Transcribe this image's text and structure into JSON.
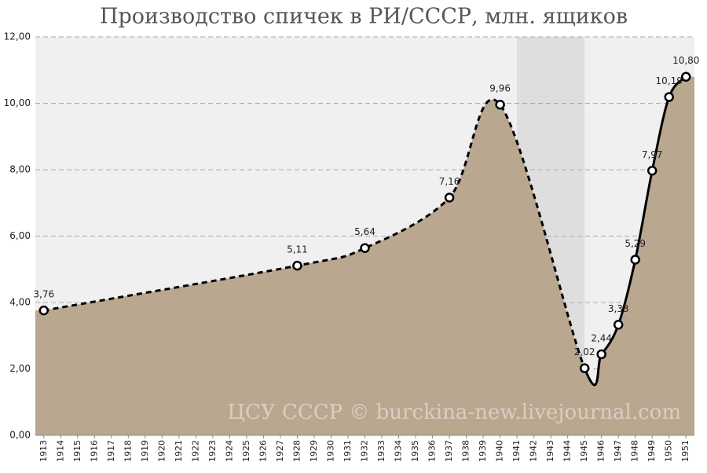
{
  "chart_data": {
    "type": "line",
    "title": "Производство спичек в РИ/СССР, млн. ящиков",
    "watermark": "ЦСУ СССР © burckina-new.livejournal.com",
    "x": [
      1913,
      1928,
      1932,
      1937,
      1940,
      1945,
      1946,
      1947,
      1948,
      1949,
      1950,
      1951
    ],
    "values": [
      3.76,
      5.11,
      5.64,
      7.16,
      9.96,
      2.02,
      2.44,
      3.33,
      5.29,
      7.97,
      10.19,
      10.8
    ],
    "value_labels": [
      "3,76",
      "5,11",
      "5,64",
      "7,16",
      "9,96",
      "2,02",
      "2,44",
      "3,33",
      "5,29",
      "7,97",
      "10,19",
      "10,80"
    ],
    "dashed_until": 1945,
    "highlight": [
      1941,
      1945
    ],
    "color": "#b9a790",
    "xlim": [
      1912.5,
      1951.5
    ],
    "xticks": [
      1913,
      1914,
      1915,
      1916,
      1917,
      1918,
      1919,
      1920,
      1921,
      1922,
      1923,
      1924,
      1925,
      1926,
      1927,
      1928,
      1929,
      1930,
      1931,
      1932,
      1933,
      1934,
      1935,
      1936,
      1937,
      1938,
      1939,
      1940,
      1941,
      1942,
      1943,
      1944,
      1945,
      1946,
      1947,
      1948,
      1949,
      1950,
      1951
    ],
    "ylim": [
      0,
      12
    ],
    "yticks": [
      {
        "value": 0,
        "label": "0,00"
      },
      {
        "value": 2,
        "label": "2,00"
      },
      {
        "value": 4,
        "label": "4,00"
      },
      {
        "value": 6,
        "label": "6,00"
      },
      {
        "value": 8,
        "label": "8,00"
      },
      {
        "value": 10,
        "label": "10,00"
      },
      {
        "value": 12,
        "label": "12,00"
      }
    ],
    "grid": true
  }
}
